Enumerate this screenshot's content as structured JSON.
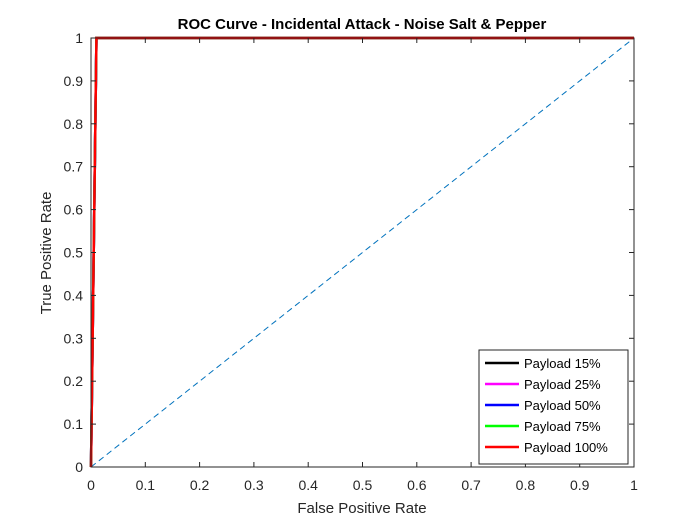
{
  "chart_data": {
    "type": "line",
    "title": "ROC Curve - Incidental Attack - Noise Salt & Pepper",
    "xlabel": "False Positive Rate",
    "ylabel": "True Positive Rate",
    "xlim": [
      0,
      1
    ],
    "ylim": [
      0,
      1
    ],
    "xticks": [
      "0",
      "0.1",
      "0.2",
      "0.3",
      "0.4",
      "0.5",
      "0.6",
      "0.7",
      "0.8",
      "0.9",
      "1"
    ],
    "yticks": [
      "0",
      "0.1",
      "0.2",
      "0.3",
      "0.4",
      "0.5",
      "0.6",
      "0.7",
      "0.8",
      "0.9",
      "1"
    ],
    "grid": false,
    "legend_position": "bottom-right",
    "reference_line": {
      "x": [
        0,
        1
      ],
      "y": [
        0,
        1
      ],
      "color": "#0072BD",
      "style": "dashed"
    },
    "series": [
      {
        "name": "Payload 15%",
        "color": "#000000",
        "x": [
          0,
          0.01,
          1
        ],
        "y": [
          0,
          1,
          1
        ]
      },
      {
        "name": "Payload 25%",
        "color": "#FF00FF",
        "x": [
          0,
          0.01,
          1
        ],
        "y": [
          0,
          1,
          1
        ]
      },
      {
        "name": "Payload 50%",
        "color": "#0000FF",
        "x": [
          0,
          0.01,
          1
        ],
        "y": [
          0,
          1,
          1
        ]
      },
      {
        "name": "Payload 75%",
        "color": "#00FF00",
        "x": [
          0,
          0.01,
          1
        ],
        "y": [
          0,
          1,
          1
        ]
      },
      {
        "name": "Payload 100%",
        "color": "#FF0000",
        "x": [
          0,
          0.01,
          1
        ],
        "y": [
          0,
          1,
          1
        ]
      }
    ]
  }
}
